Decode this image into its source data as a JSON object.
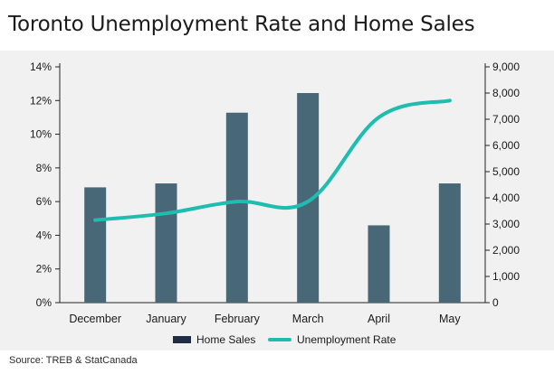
{
  "title": "Toronto Unemployment Rate and Home Sales",
  "source": "Source: TREB &  StatCanada",
  "colors": {
    "bars": "#496877",
    "line": "#1ebdb0",
    "panel": "#f1f1f1",
    "axis": "#222222"
  },
  "legend": {
    "bar_label": "Home Sales",
    "line_label": "Unemployment Rate"
  },
  "chart_data": {
    "type": "bar+line",
    "categories": [
      "December",
      "January",
      "February",
      "March",
      "April",
      "May"
    ],
    "series": [
      {
        "name": "Home Sales",
        "type": "bar",
        "axis": "right",
        "values": [
          4400,
          4550,
          7250,
          8000,
          2950,
          4550
        ]
      },
      {
        "name": "Unemployment Rate",
        "type": "line",
        "axis": "left",
        "values": [
          4.9,
          5.3,
          6.0,
          6.0,
          11.0,
          12.0
        ]
      }
    ],
    "y_left": {
      "ticks": [
        "0%",
        "2%",
        "4%",
        "6%",
        "8%",
        "10%",
        "12%",
        "14%"
      ],
      "range": [
        0,
        14
      ]
    },
    "y_right": {
      "ticks": [
        "0",
        "1,000",
        "2,000",
        "3,000",
        "4,000",
        "5,000",
        "6,000",
        "7,000",
        "8,000",
        "9,000"
      ],
      "range": [
        0,
        9000
      ]
    },
    "grid": false,
    "legend_position": "bottom"
  }
}
